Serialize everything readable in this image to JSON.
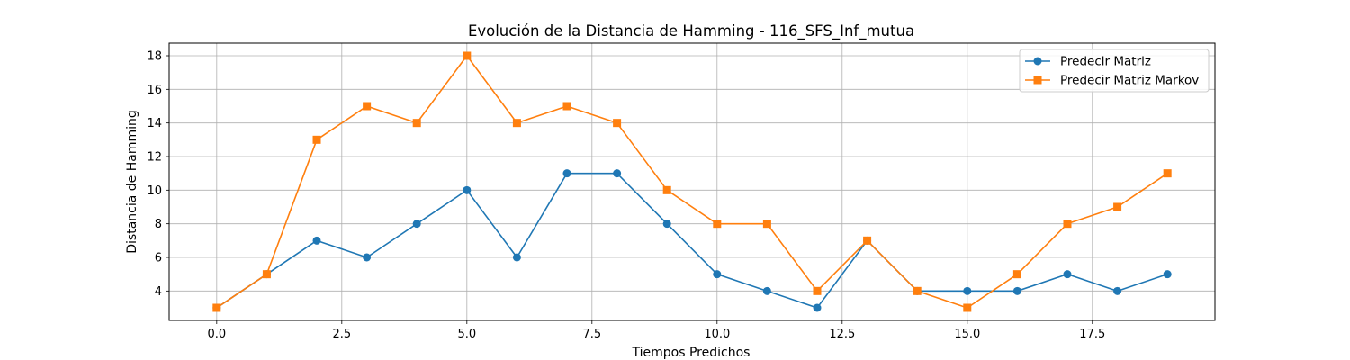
{
  "chart_data": {
    "type": "line",
    "title": "Evolución de la Distancia de Hamming - 116_SFS_Inf_mutua",
    "xlabel": "Tiempos Predichos",
    "ylabel": "Distancia de Hamming",
    "x": [
      0,
      1,
      2,
      3,
      4,
      5,
      6,
      7,
      8,
      9,
      10,
      11,
      12,
      13,
      14,
      15,
      16,
      17,
      18,
      19
    ],
    "xlim": [
      -0.95,
      19.95
    ],
    "ylim": [
      2.25,
      18.75
    ],
    "xticks": [
      0.0,
      2.5,
      5.0,
      7.5,
      10.0,
      12.5,
      15.0,
      17.5
    ],
    "xtick_labels": [
      "0.0",
      "2.5",
      "5.0",
      "7.5",
      "10.0",
      "12.5",
      "15.0",
      "17.5"
    ],
    "yticks": [
      4,
      6,
      8,
      10,
      12,
      14,
      16,
      18
    ],
    "ytick_labels": [
      "4",
      "6",
      "8",
      "10",
      "12",
      "14",
      "16",
      "18"
    ],
    "grid": true,
    "legend_position": "top-right",
    "series": [
      {
        "name": "Predecir Matriz",
        "color": "#1f77b4",
        "marker": "circle",
        "values": [
          3,
          5,
          7,
          6,
          8,
          10,
          6,
          11,
          11,
          8,
          5,
          4,
          3,
          7,
          4,
          4,
          4,
          5,
          4,
          5
        ]
      },
      {
        "name": "Predecir Matriz Markov",
        "color": "#ff7f0e",
        "marker": "square",
        "values": [
          3,
          5,
          13,
          15,
          14,
          18,
          14,
          15,
          14,
          10,
          8,
          8,
          4,
          7,
          4,
          3,
          5,
          8,
          9,
          11
        ]
      }
    ]
  }
}
